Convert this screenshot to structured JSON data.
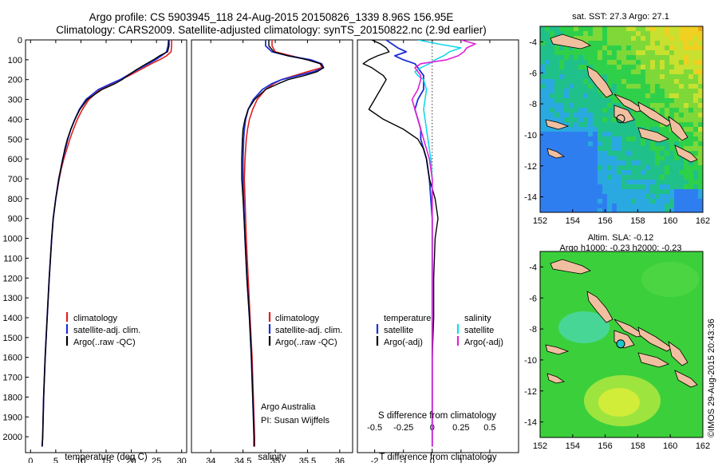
{
  "header": {
    "line1": "Argo profile: CS 5903945_118 24-Aug-2015 20150826_1339 8.96S 156.95E",
    "line2": "Climatology: CARS2009. Satellite-adjusted climatology: synTS_20150822.nc (2.9d earlier)"
  },
  "credit": "©IMOS 29-Aug-2015 20:43:36",
  "colors": {
    "climatology": "#e02020",
    "satellite": "#1f2fd8",
    "argo": "#000000",
    "sal_satellite": "#16d8e8",
    "sal_argo": "#e020d8",
    "land": "#f0bfa0",
    "marker_sst": "#000000",
    "marker_sla": "#20c8c8"
  },
  "chart_data": [
    {
      "type": "line",
      "name": "temperature",
      "xlabel": "temperature (deg C)",
      "ylabel": "",
      "xlim": [
        -1,
        31
      ],
      "ylim": [
        2080,
        0
      ],
      "xticks": [
        0,
        5,
        10,
        15,
        20,
        25,
        30
      ],
      "yticks": [
        0,
        100,
        200,
        300,
        400,
        500,
        600,
        700,
        800,
        900,
        1000,
        1100,
        1200,
        1300,
        1400,
        1500,
        1600,
        1700,
        1800,
        1900,
        2000
      ],
      "legend": {
        "placement": "lower-middle",
        "entries": [
          "climatology",
          "satellite-adj. clim.",
          "Argo(..raw -QC)"
        ]
      },
      "depth": [
        0,
        30,
        60,
        80,
        100,
        120,
        150,
        180,
        200,
        220,
        250,
        300,
        350,
        400,
        450,
        500,
        550,
        600,
        650,
        700,
        800,
        900,
        1000,
        1200,
        1400,
        1600,
        1800,
        2000,
        2050
      ],
      "series": [
        {
          "key": "climatology",
          "values": [
            28.0,
            28.0,
            27.9,
            27.0,
            25.6,
            24.0,
            21.8,
            19.6,
            18.0,
            16.2,
            13.8,
            11.6,
            10.3,
            9.3,
            8.5,
            7.8,
            7.2,
            6.6,
            6.1,
            5.7,
            5.0,
            4.5,
            4.2,
            3.7,
            3.3,
            2.9,
            2.6,
            2.4,
            2.3
          ]
        },
        {
          "key": "satellite",
          "values": [
            27.4,
            27.3,
            27.0,
            26.0,
            24.8,
            23.4,
            21.2,
            19.2,
            17.8,
            16.0,
            13.5,
            11.0,
            9.7,
            8.8,
            8.0,
            7.4,
            6.9,
            6.4,
            6.0,
            5.6,
            5.0,
            4.5,
            4.2,
            3.7,
            3.3,
            2.9,
            2.6,
            2.4,
            2.3
          ]
        },
        {
          "key": "argo",
          "values": [
            27.5,
            27.5,
            27.2,
            25.6,
            24.4,
            23.0,
            21.0,
            19.3,
            18.2,
            16.8,
            14.2,
            11.3,
            9.8,
            8.8,
            8.0,
            7.3,
            6.8,
            6.4,
            6.0,
            5.6,
            5.0,
            4.5,
            4.2,
            3.7,
            3.3,
            2.9,
            2.6,
            2.4,
            2.3
          ]
        }
      ]
    },
    {
      "type": "line",
      "name": "salinity",
      "xlabel": "salinity",
      "ylabel": "",
      "xlim": [
        33.7,
        36.2
      ],
      "ylim": [
        2080,
        0
      ],
      "xticks": [
        34,
        34.5,
        35,
        35.5,
        36
      ],
      "legend": {
        "placement": "lower-right",
        "entries": [
          "climatology",
          "satellite-adj. clim.",
          "Argo(..raw -QC)"
        ]
      },
      "annotation": [
        "Argo Australia",
        "PI: Susan Wijffels"
      ],
      "depth": [
        0,
        30,
        60,
        80,
        100,
        120,
        140,
        160,
        180,
        200,
        220,
        250,
        300,
        350,
        400,
        450,
        500,
        600,
        700,
        800,
        1000,
        1200,
        1400,
        1600,
        1800,
        2000,
        2050
      ],
      "series": [
        {
          "key": "climatology",
          "values": [
            34.95,
            34.95,
            35.0,
            35.25,
            35.5,
            35.7,
            35.72,
            35.5,
            35.3,
            35.1,
            34.98,
            34.85,
            34.72,
            34.65,
            34.6,
            34.57,
            34.55,
            34.53,
            34.52,
            34.53,
            34.55,
            34.58,
            34.61,
            34.64,
            34.66,
            34.68,
            34.68
          ]
        },
        {
          "key": "satellite",
          "values": [
            34.85,
            34.85,
            34.95,
            35.2,
            35.55,
            35.72,
            35.75,
            35.6,
            35.35,
            35.1,
            34.95,
            34.8,
            34.66,
            34.58,
            34.54,
            34.52,
            34.51,
            34.5,
            34.5,
            34.51,
            34.53,
            34.56,
            34.6,
            34.63,
            34.65,
            34.67,
            34.67
          ]
        },
        {
          "key": "argo",
          "values": [
            34.9,
            34.9,
            34.98,
            35.2,
            35.5,
            35.7,
            35.75,
            35.65,
            35.45,
            35.2,
            35.05,
            34.85,
            34.68,
            34.58,
            34.53,
            34.5,
            34.49,
            34.48,
            34.48,
            34.5,
            34.53,
            34.56,
            34.6,
            34.63,
            34.65,
            34.67,
            34.67
          ]
        }
      ]
    },
    {
      "type": "line",
      "name": "differences",
      "xlabel": "T difference from climatology",
      "x2label": "S difference from climatology",
      "xlim": [
        -2.6,
        3.0
      ],
      "ylim": [
        2080,
        0
      ],
      "xticks": [
        -2,
        -1,
        0,
        1,
        2
      ],
      "x2ticks": [
        "-0.5",
        "-0.25",
        "0",
        "0.25",
        "0.5"
      ],
      "x2tick_values": [
        -2,
        -1,
        0,
        1,
        2
      ],
      "legend": {
        "placement": "lower-middle",
        "temperature_heading": "temperature",
        "salinity_heading": "salinity",
        "entries": [
          "satellite",
          "Argo(-adj)",
          "satellite",
          "Argo(-adj)"
        ]
      },
      "depth": [
        0,
        20,
        40,
        60,
        80,
        100,
        120,
        140,
        160,
        180,
        200,
        250,
        300,
        350,
        400,
        450,
        500,
        550,
        600,
        700,
        800,
        900,
        1000,
        1200,
        1400,
        1600,
        1800,
        2000,
        2050
      ],
      "series": [
        {
          "key": "t_satellite",
          "values": [
            -1.6,
            -1.4,
            -1.2,
            -0.9,
            -1.3,
            -1.0,
            -0.6,
            -0.5,
            -0.4,
            -0.3,
            -0.3,
            -0.3,
            -0.5,
            -0.6,
            -0.5,
            -0.4,
            -0.4,
            -0.3,
            -0.2,
            -0.1,
            -0.05,
            0,
            0,
            0,
            0,
            0,
            0,
            0,
            0
          ]
        },
        {
          "key": "t_argo",
          "values": [
            -2.1,
            -1.8,
            -1.6,
            -1.5,
            -1.9,
            -2.2,
            -2.4,
            -2.1,
            -1.9,
            -1.7,
            -1.6,
            -1.8,
            -2.0,
            -2.2,
            -1.7,
            -1.0,
            -0.5,
            -0.3,
            -0.2,
            -0.1,
            0.1,
            0.2,
            0.1,
            0.05,
            0.05,
            0,
            0,
            0,
            0
          ]
        },
        {
          "key": "s_satellite",
          "values": [
            -0.5,
            0.2,
            1.0,
            0.6,
            0.4,
            0.1,
            -0.1,
            -0.4,
            -0.6,
            -0.5,
            -0.3,
            -0.2,
            -0.25,
            -0.3,
            -0.25,
            -0.2,
            -0.15,
            -0.1,
            -0.05,
            0,
            0,
            0,
            0,
            0,
            0,
            0,
            0,
            0,
            0
          ]
        },
        {
          "key": "s_argo",
          "values": [
            1.0,
            1.5,
            1.2,
            1.1,
            0.9,
            0.5,
            -0.4,
            -0.6,
            -0.5,
            -0.4,
            -0.4,
            -0.5,
            -0.7,
            -0.6,
            -0.5,
            -0.4,
            -0.3,
            -0.2,
            -0.1,
            0,
            0,
            0,
            0,
            0,
            0,
            0,
            0,
            0,
            0
          ]
        }
      ]
    },
    {
      "type": "heatmap",
      "name": "sst-map",
      "title": "sat. SST: 27.3 Argo: 27.1",
      "xlim": [
        152,
        162
      ],
      "ylim": [
        -15,
        -3
      ],
      "xticks": [
        152,
        154,
        156,
        158,
        160,
        162
      ],
      "yticks": [
        -4,
        -6,
        -8,
        -10,
        -12,
        -14
      ],
      "marker": {
        "lon": 156.95,
        "lat": -8.96
      }
    },
    {
      "type": "heatmap",
      "name": "sla-map",
      "title": [
        "Altim. SLA: -0.12",
        "Argo h1000: -0.23 h2000: -0.23"
      ],
      "xlim": [
        152,
        162
      ],
      "ylim": [
        -15,
        -3
      ],
      "xticks": [
        152,
        154,
        156,
        158,
        160,
        162
      ],
      "yticks": [
        -4,
        -6,
        -8,
        -10,
        -12,
        -14
      ],
      "marker": {
        "lon": 156.95,
        "lat": -8.96
      }
    }
  ]
}
